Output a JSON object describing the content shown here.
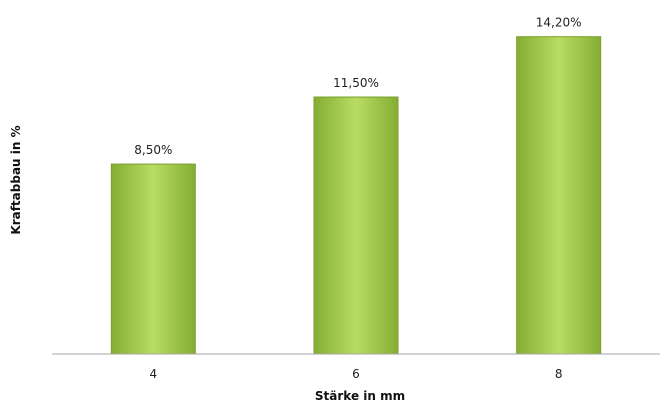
{
  "chart_data": {
    "type": "bar",
    "title": "",
    "xlabel": "Stärke in mm",
    "ylabel": "Kraftabbau in %",
    "categories": [
      "4",
      "6",
      "8"
    ],
    "values": [
      8.5,
      11.5,
      14.2
    ],
    "value_labels": [
      "8,50%",
      "11,50%",
      "14,20%"
    ],
    "ylim": [
      0,
      14.5
    ],
    "grid": false,
    "legend": "none",
    "bar_color_light": "#b9dc63",
    "bar_color_dark": "#84ad33",
    "bar_border_color": "#7a9f2b",
    "axis_color": "#a6a6a6"
  }
}
